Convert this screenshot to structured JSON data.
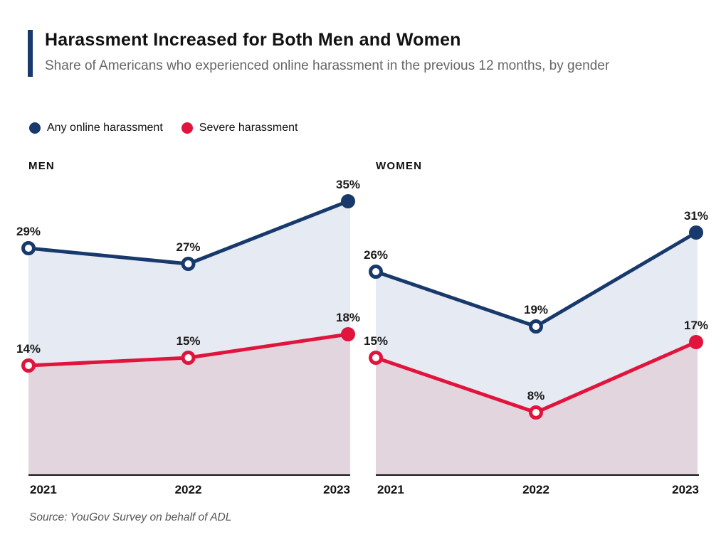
{
  "header": {
    "title": "Harassment Increased for Both Men and Women",
    "subtitle": "Share of Americans who experienced online harassment in the previous 12 months, by gender"
  },
  "legend": [
    {
      "label": "Any online harassment",
      "color": "#17396B"
    },
    {
      "label": "Severe harassment",
      "color": "#E0143C"
    }
  ],
  "source": "Source: YouGov Survey on behalf of ADL",
  "colors": {
    "accent_navy": "#17396B",
    "accent_crimson": "#E0143C",
    "navy_area_fill": "#E6EAF3",
    "crimson_area_fill": "#E3D5DE",
    "axis": "#111111",
    "title_text": "#111111",
    "subtitle_text": "#666666",
    "source_text": "#555555",
    "data_label_text": "#1A1A1A"
  },
  "chart_data": [
    {
      "type": "line",
      "title": "MEN",
      "x": [
        "2021",
        "2022",
        "2023"
      ],
      "series": [
        {
          "name": "Any online harassment",
          "values": [
            29,
            27,
            35
          ],
          "labels": [
            "29%",
            "27%",
            "35%"
          ],
          "color": "#17396B",
          "area": "#E6EAF3",
          "markers": [
            "open",
            "open",
            "filled"
          ]
        },
        {
          "name": "Severe harassment",
          "values": [
            14,
            15,
            18
          ],
          "labels": [
            "14%",
            "15%",
            "18%"
          ],
          "color": "#E0143C",
          "area": "#E3D5DE",
          "markers": [
            "open",
            "open",
            "filled"
          ]
        }
      ],
      "ylim": [
        0,
        42
      ],
      "grid": false,
      "y_axis_shown": false,
      "legend_position": "top"
    },
    {
      "type": "line",
      "title": "WOMEN",
      "x": [
        "2021",
        "2022",
        "2023"
      ],
      "series": [
        {
          "name": "Any online harassment",
          "values": [
            26,
            19,
            31
          ],
          "labels": [
            "26%",
            "19%",
            "31%"
          ],
          "color": "#17396B",
          "area": "#E6EAF3",
          "markers": [
            "open",
            "open",
            "filled"
          ]
        },
        {
          "name": "Severe harassment",
          "values": [
            15,
            8,
            17
          ],
          "labels": [
            "15%",
            "8%",
            "17%"
          ],
          "color": "#E0143C",
          "area": "#E3D5DE",
          "markers": [
            "open",
            "open",
            "filled"
          ]
        }
      ],
      "ylim": [
        0,
        42
      ],
      "grid": false,
      "y_axis_shown": false,
      "legend_position": "top"
    }
  ]
}
